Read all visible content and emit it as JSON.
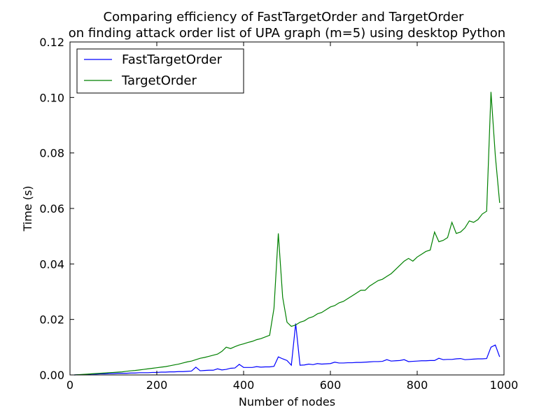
{
  "chart_data": {
    "type": "line",
    "title": "Comparing efficiency of FastTargetOrder and TargetOrder",
    "subtitle": "on finding attack order list of UPA graph (m=5) using desktop Python",
    "xlabel": "Number of nodes",
    "ylabel": "Time (s)",
    "xlim": [
      0,
      1000
    ],
    "ylim": [
      0,
      0.12
    ],
    "xticks": [
      0,
      200,
      400,
      600,
      800,
      1000
    ],
    "xtick_labels": [
      "0",
      "200",
      "400",
      "600",
      "800",
      "1000"
    ],
    "yticks": [
      0,
      0.02,
      0.04,
      0.06,
      0.08,
      0.1,
      0.12
    ],
    "ytick_labels": [
      "0.00",
      "0.02",
      "0.04",
      "0.06",
      "0.08",
      "0.10",
      "0.12"
    ],
    "legend_position": "top-left",
    "grid": false,
    "x": [
      10,
      20,
      30,
      40,
      50,
      60,
      70,
      80,
      90,
      100,
      110,
      120,
      130,
      140,
      150,
      160,
      170,
      180,
      190,
      200,
      210,
      220,
      230,
      240,
      250,
      260,
      270,
      280,
      290,
      300,
      310,
      320,
      330,
      340,
      350,
      360,
      370,
      380,
      390,
      400,
      410,
      420,
      430,
      440,
      450,
      460,
      470,
      480,
      490,
      500,
      510,
      520,
      530,
      540,
      550,
      560,
      570,
      580,
      590,
      600,
      610,
      620,
      630,
      640,
      650,
      660,
      670,
      680,
      690,
      700,
      710,
      720,
      730,
      740,
      750,
      760,
      770,
      780,
      790,
      800,
      810,
      820,
      830,
      840,
      850,
      860,
      870,
      880,
      890,
      900,
      910,
      920,
      930,
      940,
      950,
      960,
      970,
      980,
      990
    ],
    "series": [
      {
        "name": "FastTargetOrder",
        "color": "#0000ff",
        "values": [
          0.0,
          0.0001,
          0.0001,
          0.0002,
          0.0003,
          0.0003,
          0.0004,
          0.0004,
          0.0005,
          0.0005,
          0.0006,
          0.0006,
          0.0006,
          0.0007,
          0.0007,
          0.0008,
          0.0008,
          0.0008,
          0.0009,
          0.0009,
          0.001,
          0.001,
          0.0011,
          0.0011,
          0.0012,
          0.0012,
          0.0013,
          0.0014,
          0.0028,
          0.0015,
          0.0016,
          0.0017,
          0.0017,
          0.0022,
          0.0018,
          0.002,
          0.0024,
          0.0025,
          0.0038,
          0.0027,
          0.0027,
          0.0027,
          0.003,
          0.0028,
          0.0029,
          0.0029,
          0.0031,
          0.0065,
          0.0058,
          0.0052,
          0.0035,
          0.0185,
          0.0035,
          0.0036,
          0.0039,
          0.0037,
          0.0041,
          0.0039,
          0.004,
          0.0041,
          0.0046,
          0.0043,
          0.0043,
          0.0044,
          0.0044,
          0.0045,
          0.0045,
          0.0046,
          0.0047,
          0.0048,
          0.0048,
          0.0049,
          0.0055,
          0.005,
          0.0051,
          0.0052,
          0.0055,
          0.0048,
          0.0049,
          0.005,
          0.0051,
          0.0051,
          0.0052,
          0.0052,
          0.006,
          0.0055,
          0.0056,
          0.0056,
          0.0058,
          0.0059,
          0.0055,
          0.0056,
          0.0057,
          0.0058,
          0.0058,
          0.0059,
          0.01,
          0.0108,
          0.0065
        ]
      },
      {
        "name": "TargetOrder",
        "color": "#008000",
        "values": [
          0.0,
          0.0001,
          0.0002,
          0.0003,
          0.0004,
          0.0005,
          0.0006,
          0.0007,
          0.0008,
          0.0009,
          0.001,
          0.0011,
          0.0013,
          0.0015,
          0.0016,
          0.0018,
          0.002,
          0.0022,
          0.0024,
          0.0026,
          0.0028,
          0.003,
          0.0033,
          0.0036,
          0.0039,
          0.0043,
          0.0047,
          0.005,
          0.0055,
          0.006,
          0.0063,
          0.0067,
          0.0071,
          0.0075,
          0.0085,
          0.01,
          0.0095,
          0.0102,
          0.0108,
          0.0112,
          0.0117,
          0.0121,
          0.0127,
          0.0131,
          0.0137,
          0.0143,
          0.024,
          0.051,
          0.028,
          0.019,
          0.0175,
          0.018,
          0.019,
          0.0195,
          0.0205,
          0.021,
          0.022,
          0.0225,
          0.0235,
          0.0245,
          0.025,
          0.026,
          0.0265,
          0.0275,
          0.0285,
          0.0295,
          0.0305,
          0.0305,
          0.032,
          0.033,
          0.034,
          0.0345,
          0.0355,
          0.0365,
          0.038,
          0.0395,
          0.041,
          0.042,
          0.041,
          0.0425,
          0.0435,
          0.0445,
          0.045,
          0.0515,
          0.048,
          0.0485,
          0.0495,
          0.055,
          0.051,
          0.0515,
          0.053,
          0.0555,
          0.055,
          0.056,
          0.058,
          0.059,
          0.102,
          0.079,
          0.062
        ]
      }
    ]
  }
}
